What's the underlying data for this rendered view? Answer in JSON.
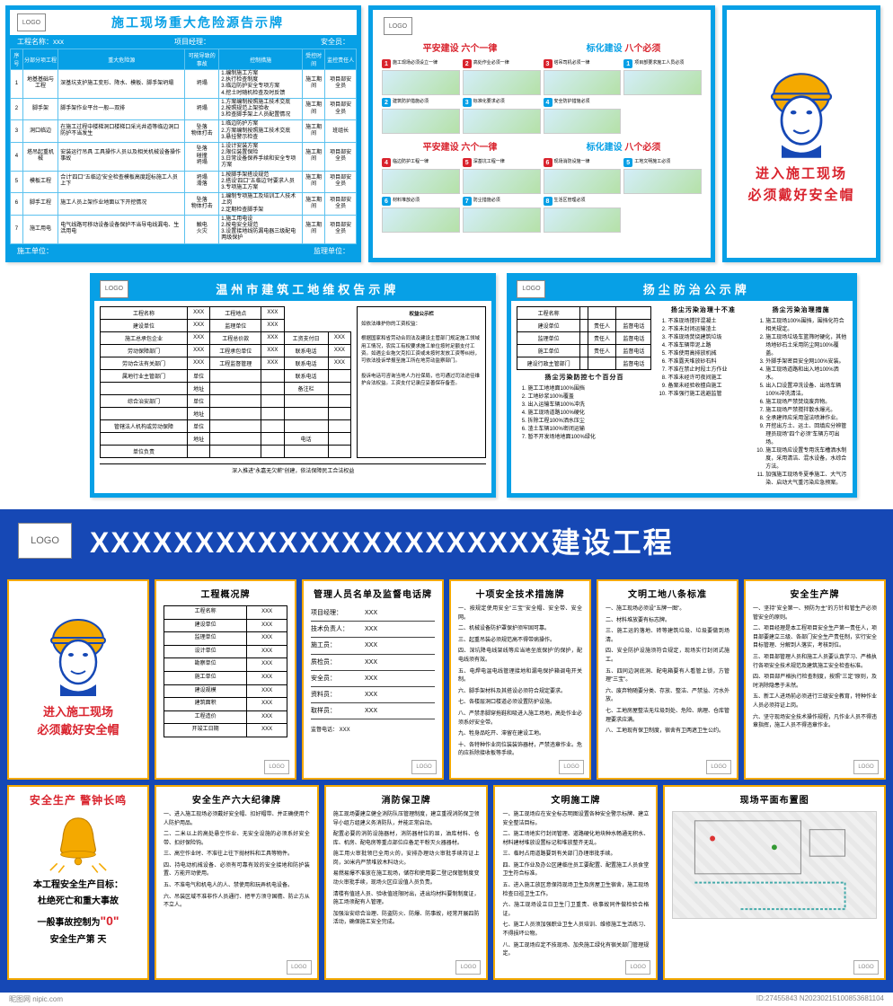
{
  "colors": {
    "blue": "#07a0e6",
    "navy": "#1648b5",
    "red": "#d9232d",
    "yellow": "#f4a900"
  },
  "logo_text": "LOGO",
  "hazard": {
    "title": "施工现场重大危险源告示牌",
    "sub_left": "工程名称：xxx",
    "sub_mid": "项目经理：",
    "sub_right": "安全员：",
    "cols": [
      "序号",
      "分部分项工程",
      "重大危险源",
      "可能导致的事故",
      "控制措施",
      "受控时间",
      "监控责任人"
    ],
    "rows": [
      [
        "1",
        "地基基础与工程",
        "深基坑支护施工变形、降水、模板、脚手架坍塌",
        "坍塌",
        "1.编制施工方案\\n2.执行检查制度\\n3.临边防护安全专项方案\\n4.挖土时随机检查及时反馈",
        "施工期间",
        "项目部安全员"
      ],
      [
        "2",
        "脚手架",
        "脚手架作业平台一般—双排",
        "坍塌",
        "1.方案编制按照施工技术交底\\n2.按照规范上架验收\\n3.检查脚手架上人员配置情况",
        "施工期间",
        "项目部安全员"
      ],
      [
        "3",
        "洞口临边",
        "在施工过程中楼梯洞口楼梯口采光井道等临边洞口防护不当发生",
        "坠落\\n物体打击",
        "1.临边防护方案\\n2.方案编制按照施工技术交底\\n3.悬挂警示检查",
        "施工期间",
        "班组长"
      ],
      [
        "4",
        "塔吊起重机械",
        "安装运行吊具 工具操作人员以及相关机械设备操作事故",
        "坠落\\n碰撞\\n坍塌",
        "1.设计安装方案\\n2.限位装置保险\\n3.日常设备保养手续和安全专项方案",
        "施工期间",
        "项目部安全员"
      ],
      [
        "5",
        "模板工程",
        "合计'四口''五临边'安全检查模板高度超标施工人员上下",
        "坍塌\\n滑落",
        "1.按脚手架搭设规范\\n2.搭设'四口''五临边'时要求人员\\n3.专项施工方案",
        "施工期间",
        "项目部安全员"
      ],
      [
        "6",
        "脚手工程",
        "施工人员上架作业地面以下开挖情况",
        "坠落\\n物体打击",
        "1.编制专项施工及培训工人技术上岗\\n2.定期检查脚手架",
        "施工期间",
        "项目部安全员"
      ],
      [
        "7",
        "施工用电",
        "电气线路可移动设备设备保护不当导电线漏电、生活用电",
        "触电\\n火灾",
        "1.施工用电设\\n2.按电安全规范\\n3.设置接地线防漏电器三级配电两级保护",
        "施工期间",
        "项目部安全员"
      ]
    ],
    "footer_left": "施工单位：",
    "footer_right": "监理单位："
  },
  "rules": {
    "row1_a": "平安建设",
    "row1_b": "六个一律",
    "row1_c": "标化建设",
    "row1_d": "八个必须",
    "items_top": [
      {
        "n": "1",
        "c": "red",
        "t": "施工现场必须设立一律"
      },
      {
        "n": "2",
        "c": "red",
        "t": "高处作业必须一律"
      },
      {
        "n": "3",
        "c": "red",
        "t": "塔吊司机必须一律"
      },
      {
        "n": "1",
        "c": "blue",
        "t": "项目部要求施工人员必须"
      },
      {
        "n": "2",
        "c": "blue",
        "t": "建筑防护措施必须"
      },
      {
        "n": "3",
        "c": "blue",
        "t": "标准化要求必须"
      },
      {
        "n": "4",
        "c": "blue",
        "t": "安全防护措施必须"
      }
    ],
    "items_bot": [
      {
        "n": "4",
        "c": "red",
        "t": "临边防护工程一律"
      },
      {
        "n": "5",
        "c": "red",
        "t": "深基坑工程一律"
      },
      {
        "n": "6",
        "c": "red",
        "t": "现场消防设施一律"
      },
      {
        "n": "5",
        "c": "blue",
        "t": "工地文明施工必须"
      },
      {
        "n": "6",
        "c": "blue",
        "t": "材料堆放必须"
      },
      {
        "n": "7",
        "c": "blue",
        "t": "防尘措施必须"
      },
      {
        "n": "8",
        "c": "blue",
        "t": "生活区管理必须"
      }
    ]
  },
  "helmet": {
    "line1": "进入施工现场",
    "line2": "必须戴好安全帽"
  },
  "rights": {
    "title": "温州市建筑工地维权告示牌",
    "fields": [
      [
        "工程名称",
        "XXX",
        "工程地点",
        "XXX"
      ],
      [
        "建设单位",
        "XXX",
        "监理单位",
        "XXX"
      ],
      [
        "施工总承包企业",
        "XXX",
        "工程总价款",
        "XXX",
        "工资支付日",
        "XXX"
      ],
      [
        "劳动保障部门",
        "XXX",
        "工程承包单位",
        "XXX",
        "联系电话",
        "XXX"
      ],
      [
        "劳动合法有关部门",
        "XXX",
        "工程监督管理",
        "XXX",
        "联系电话",
        "XXX"
      ],
      [
        "属地行业主管部门",
        "单位",
        "",
        "",
        "联系电话",
        ""
      ],
      [
        "",
        "地址",
        "",
        "",
        "备注栏",
        ""
      ],
      [
        "综合治安部门",
        "单位",
        "",
        "",
        "",
        ""
      ],
      [
        "",
        "地址",
        "",
        "",
        "",
        ""
      ],
      [
        "管辖法人机构或劳动保障",
        "单位",
        "",
        "",
        "",
        ""
      ],
      [
        "",
        "地址",
        "",
        "",
        "电话",
        ""
      ],
      [
        "单位负责",
        "",
        "",
        "",
        "",
        ""
      ]
    ],
    "side_title": "权益公示栏",
    "side_text": "如依法维护你的工资权益：\\n根据国家和省劳动合同法及建设主管部门规定施工领域用工情况，农民工有权要求施工单位按时足额支付工资。如遇企业拖欠克扣工资或未按时发放工资等纠纷，可依法投诉举报至施工所在地劳动监察部门。\\n投诉电话可咨询当地人力社保局，也可通过司法途径维护合法权益。工资支付记录应妥善保存备查。",
    "footer": "深入推进\"永嘉无欠薪\"创建，依法保障民工合法权益"
  },
  "dust": {
    "title": "扬尘防治公示牌",
    "left_rows": [
      [
        "工程名称",
        "",
        "",
        ""
      ],
      [
        "建设单位",
        "",
        "责任人",
        "监督电话"
      ],
      [
        "监理单位",
        "",
        "责任人",
        "监督电话"
      ],
      [
        "施工单位",
        "",
        "责任人",
        "监督电话"
      ],
      [
        "建设行政主管部门",
        "",
        "",
        "监督电话"
      ]
    ],
    "col1_title": "扬尘污染防控七个百分百",
    "col1": [
      "施工工地地面100%围挡",
      "工地砂浆100%覆盖",
      "出入运输车辆100%冲洗",
      "施工现场道路100%硬化",
      "拆除工程100%洒水压尘",
      "渣土车辆100%密闭运输",
      "暂不开发场地地面100%绿化"
    ],
    "col2_title": "扬尘污染治理十不准",
    "col2": [
      "不准现场搅拌混凝土",
      "不准未封闭运输渣土",
      "不准现场焚烧建筑垃圾",
      "不准车辆带泥上路",
      "不准使用高排放机械",
      "不准露天堆放砂石料",
      "不准在禁止时段土方作业",
      "不准未经许可夜间施工",
      "备案未经验收擅自施工",
      "不准强行施工逃避监管"
    ],
    "col3_title": "扬尘污染治理措施",
    "col3": [
      "施工现场100%围挡，围挡化符合相关规定。",
      "施工现场垃圾车篮筛时硬化，其他场地砂石土采用防尘网100%覆盖。",
      "外脚手架密目安全网100%安装。",
      "施工现场道路和出入地100%洒水。",
      "出入口设置冲洗设备、出场车辆100%冲洗清洁。",
      "施工现场严禁焚烧废弃物。",
      "施工现场严禁搅拌散水爆光。",
      "全承建师应采用湿法喷淋作业。",
      "开挖出方土、运土、回填应分辨管理员现场\"四个必须\"车辆方可出场。",
      "施工现场应设置专用洗车槽洒水制度，采用清洁、混水设备，水综合方法。",
      "加强施工现场冬夏季施工、大气污染、启动大气重污染应急预案。"
    ]
  },
  "banner": "XXXXXXXXXXXXXXXXXXXXXX建设工程",
  "cards": {
    "overview": {
      "title": "工程概况牌",
      "rows": [
        [
          "工程名称",
          "XXX"
        ],
        [
          "建设单位",
          "XXX"
        ],
        [
          "监理单位",
          "XXX"
        ],
        [
          "设计单位",
          "XXX"
        ],
        [
          "勘察单位",
          "XXX"
        ],
        [
          "施工单位",
          "XXX"
        ],
        [
          "建设规模",
          "XXX"
        ],
        [
          "建筑面积",
          "XXX"
        ],
        [
          "工程造价",
          "XXX"
        ],
        [
          "开竣工日期",
          "XXX"
        ]
      ]
    },
    "staff": {
      "title": "管理人员名单及监督电话牌",
      "rows": [
        [
          "项目经理：",
          "XXX"
        ],
        [
          "技术负责人：",
          "XXX"
        ],
        [
          "施工员：",
          "XXX"
        ],
        [
          "质检员：",
          "XXX"
        ],
        [
          "安全员：",
          "XXX"
        ],
        [
          "资料员：",
          "XXX"
        ],
        [
          "取样员：",
          "XXX"
        ]
      ],
      "footer": "监督电话：        XXX"
    },
    "ten": {
      "title": "十项安全技术措施牌",
      "items": [
        "一、按规定使用安全\"三宝\"安全帽、安全带、安全网。",
        "二、机械设备防护罩保护须牢固可靠。",
        "三、起重吊装必须规范高不得带病操作。",
        "四、深坑降电线架线等应当地坐底保护'的保护，配电线须有效。",
        "五、电焊电温电线管理接地和漏电保护箱调电开关制。",
        "六、脚手架材料及其搭设必须符合规定要求。",
        "七、各楼层洞口楼道必须设置防护设施。",
        "八、严禁赤脚穿拖鞋和吸进入施工场地，高处作业必须系好安全带。",
        "九、牲身品吃开、滞留在建设工地。",
        "十、各特种作业岗位装装饰器材，严禁违章作业。危的应拆除接收板等手续。"
      ]
    },
    "civil": {
      "title": "文明工地八条标准",
      "items": [
        "一、施工现场必须设\"五牌一图\"。",
        "二、材料堆放要有标志牌。",
        "三、施工运的落地、砖等建筑垃圾、垃圾要做到场清。",
        "四、安全防护设施须符合规定，现场实行封闭式施工。",
        "五、四同边洞底洞、配电箱要有人看管上锁，方管理\"三宝\"。",
        "六、废弃物随要分类、存放、整洁、严禁溢、污水外放。",
        "七、工地房屋整洁无垃圾到处、危险、病理、仓库管理要求应满。",
        "八、工地现有保卫制度，宿舍有卫两遮卫生公约。"
      ]
    },
    "safety": {
      "title": "安全生产牌",
      "items": [
        "一、坚持\"安全第一、预防为主\"的方针和管生产必须管安全的原则。",
        "二、项目经理是本工程项目安全生产第一责任人，项目部要建立三级、各部门安全生产责任制，实行安全目标管理、分解到人落实，考核到位。",
        "三、项目部管理人员和施工人员要认真学习、严格执行各项安全技术规范及建筑施工安全检查标准。",
        "四、项目部严格执行检查制度，按照\"三定\"原则，及时消除隐患于未然。",
        "五、新工人进场前必须进行三级安全教育，特种作业人员必须持证上岗。",
        "六、坚守现场安全技术操作规程，凡作业人员不得违章指挥，施工人员不得违章作业。"
      ]
    },
    "six": {
      "title": "安全生产六大纪律牌",
      "items": [
        "一、进入施工现场必须戴好安全帽、扣好帽带、并正确使用个人防护用品。",
        "二、二米以上的高处悬空作业、无安全设施的必须系好安全带、扣好保险钩。",
        "三、高空作业时、不准往上往下抛材料和工具等物件。",
        "四、持电动机械设备、必须有可靠有效的安全接地和防护装置、方能开动使用。",
        "五、不准电气和机电人的人、禁使用和玩弄机电设备。",
        "六、吊装区域不准非作人员通行、把平方须守国檐、防止方从不立人。"
      ]
    },
    "fire": {
      "title": "消防保卫牌",
      "items": [
        "施工现场要建立健全消防队压管理制度，建立重视消防保卫领导小组方组建义务消防队，并能正常启动。",
        "配置必要的消防设施器材，消防器材位的显，油库材料、仓库、机房、配电房等重点部位应备足干粉灭火器器材。",
        "施工用火审批领已全用火的，安排办理动火审批手续持证上岗，30米内严禁堆放木料动火。",
        "易燃易爆不准放在施工现场，储存和使用要二登记保管制度变动火审批手续，现场火区应设值人员负责。",
        "清楼有值班人员、验收值班限时出，进出均材料要制制度证，施工场须配有人管理。",
        "加强治安综合治理、防盗防火、防爆、防事故，经常开展四防活动，确保施工安全完成。"
      ]
    },
    "civilwork": {
      "title": "文明施工牌",
      "items": [
        "一、施工现场应在安全标志明图设置各种安全警示标牌、建立安全整洁目标。",
        "二、施工场地实行封闭管理、道路硬化地块种水畅通无积水、材料建材堆放设置标记和堆放整齐无乱。",
        "三、临时占用道路要到有关部门办理审批手续。",
        "四、施工作业及办公区建临住员工要配置、配置施工人员食堂卫生符合标准。",
        "五、进入施工放区意保持现场卫生及房屋卫生宿舍，施工现场检查日巡卫生工作。",
        "六、施工现场设立日卫生门卫重责、收事故同件做检验合格证。",
        "七、施工人员须加强职业卫生人员培训、维修施工生活练习、不得损坏公物。",
        "八、施工现场应定不技现场、加央施工绿化有宿关部门管理规定。"
      ]
    },
    "sitemap": {
      "title": "现场平面布置图"
    }
  },
  "bell": {
    "top": "安全生产 警钟长鸣",
    "l1": "本工程安全生产目标：",
    "l2": "杜绝死亡和重大事故",
    "l3a": "一般事故控制为",
    "l3b": "\"0\"",
    "l4": "安全生产第      天"
  },
  "watermark": {
    "left": "昵图网 nipic.com",
    "right": "ID:27455843  N20230215100853681104"
  }
}
